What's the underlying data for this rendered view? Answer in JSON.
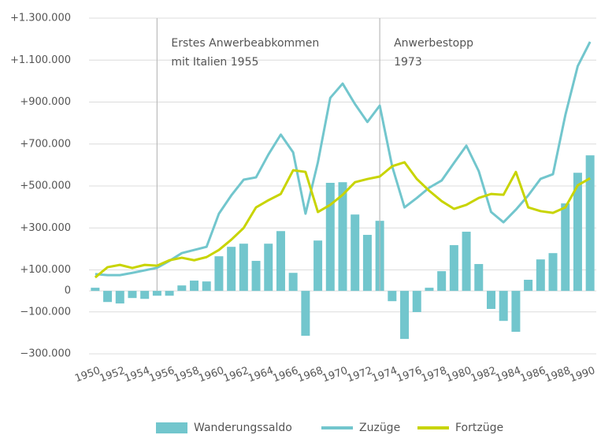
{
  "chart_data": {
    "type": "bar",
    "x": [
      1950,
      1951,
      1952,
      1953,
      1954,
      1955,
      1956,
      1957,
      1958,
      1959,
      1960,
      1961,
      1962,
      1963,
      1964,
      1965,
      1966,
      1967,
      1968,
      1969,
      1970,
      1971,
      1972,
      1973,
      1974,
      1975,
      1976,
      1977,
      1978,
      1979,
      1980,
      1981,
      1982,
      1983,
      1984,
      1985,
      1986,
      1987,
      1988,
      1989,
      1990
    ],
    "xlim": [
      1949.5,
      1990.5
    ],
    "xticks": [
      1950,
      1952,
      1954,
      1956,
      1958,
      1960,
      1962,
      1964,
      1966,
      1968,
      1970,
      1972,
      1974,
      1976,
      1978,
      1980,
      1982,
      1984,
      1986,
      1988,
      1990
    ],
    "ylim": [
      -300000,
      1300000
    ],
    "yticks": [
      {
        "value": 1300000,
        "label": "+1.300.000"
      },
      {
        "value": 1100000,
        "label": "+1.100.000"
      },
      {
        "value": 900000,
        "label": "+900.000"
      },
      {
        "value": 700000,
        "label": "+700.000"
      },
      {
        "value": 500000,
        "label": "+500.000"
      },
      {
        "value": 300000,
        "label": "+300.000"
      },
      {
        "value": 100000,
        "label": "+100.000"
      },
      0,
      {
        "value": -100000,
        "label": "−100.000"
      },
      {
        "value": -300000,
        "label": "−300.000"
      }
    ],
    "grid": true,
    "legend": "bottom",
    "series": [
      {
        "name": "Wanderungssaldo",
        "type": "bar",
        "color": "#72c6cd",
        "values": [
          15000,
          -53000,
          -60000,
          -34000,
          -38000,
          -23000,
          -23000,
          26000,
          49000,
          45000,
          165000,
          210000,
          225000,
          143000,
          225000,
          285000,
          86000,
          -214000,
          240000,
          515000,
          518000,
          364000,
          267000,
          334000,
          -49000,
          -229000,
          -101000,
          15000,
          94000,
          218000,
          282000,
          128000,
          -86000,
          -143000,
          -195000,
          53000,
          150000,
          180000,
          417000,
          563000,
          646000
        ]
      },
      {
        "name": "Zuzüge",
        "type": "line",
        "color": "#72c6cd",
        "values": [
          80000,
          75000,
          75000,
          86000,
          98000,
          110000,
          143000,
          180000,
          195000,
          210000,
          368000,
          455000,
          530000,
          541000,
          650000,
          745000,
          660000,
          368000,
          613000,
          920000,
          988000,
          890000,
          805000,
          883000,
          594000,
          398000,
          443000,
          492000,
          526000,
          610000,
          692000,
          571000,
          376000,
          327000,
          387000,
          455000,
          534000,
          556000,
          838000,
          1071000,
          1187000
        ]
      },
      {
        "name": "Fortzüge",
        "type": "line",
        "color": "#c8d400",
        "values": [
          64000,
          113000,
          124000,
          109000,
          124000,
          120000,
          146000,
          158000,
          146000,
          161000,
          195000,
          244000,
          300000,
          398000,
          432000,
          462000,
          575000,
          567000,
          376000,
          410000,
          458000,
          518000,
          533000,
          545000,
          594000,
          613000,
          533000,
          477000,
          428000,
          391000,
          410000,
          443000,
          462000,
          458000,
          567000,
          398000,
          380000,
          372000,
          398000,
          503000,
          537000
        ]
      }
    ],
    "annotations": [
      {
        "x": 1955,
        "lines": [
          "Erstes Anwerbeabkommen",
          "mit Italien 1955"
        ]
      },
      {
        "x": 1973,
        "lines": [
          "Anwerbestopp",
          "1973"
        ]
      }
    ]
  }
}
